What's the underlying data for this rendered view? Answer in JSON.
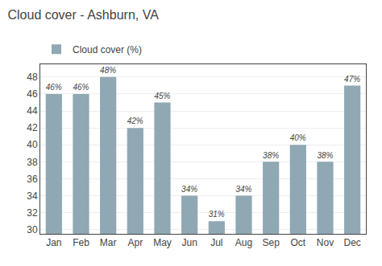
{
  "chart_data": {
    "type": "bar",
    "title": "Cloud cover - Ashburn, VA",
    "categories": [
      "Jan",
      "Feb",
      "Mar",
      "Apr",
      "May",
      "Jun",
      "Jul",
      "Aug",
      "Sep",
      "Oct",
      "Nov",
      "Dec"
    ],
    "series": [
      {
        "name": "Cloud cover (%)",
        "color": "#8fa8b4",
        "values": [
          46,
          46,
          48,
          42,
          45,
          34,
          31,
          34,
          38,
          40,
          38,
          47
        ],
        "value_labels": [
          "46%",
          "46%",
          "48%",
          "42%",
          "45%",
          "34%",
          "31%",
          "34%",
          "38%",
          "40%",
          "38%",
          "47%"
        ]
      }
    ],
    "ylim": [
      29.5,
      49.5
    ],
    "yticks": [
      30,
      32,
      34,
      36,
      38,
      40,
      42,
      44,
      46,
      48
    ],
    "grid": true,
    "data_labels": true,
    "legend": "upper left"
  }
}
